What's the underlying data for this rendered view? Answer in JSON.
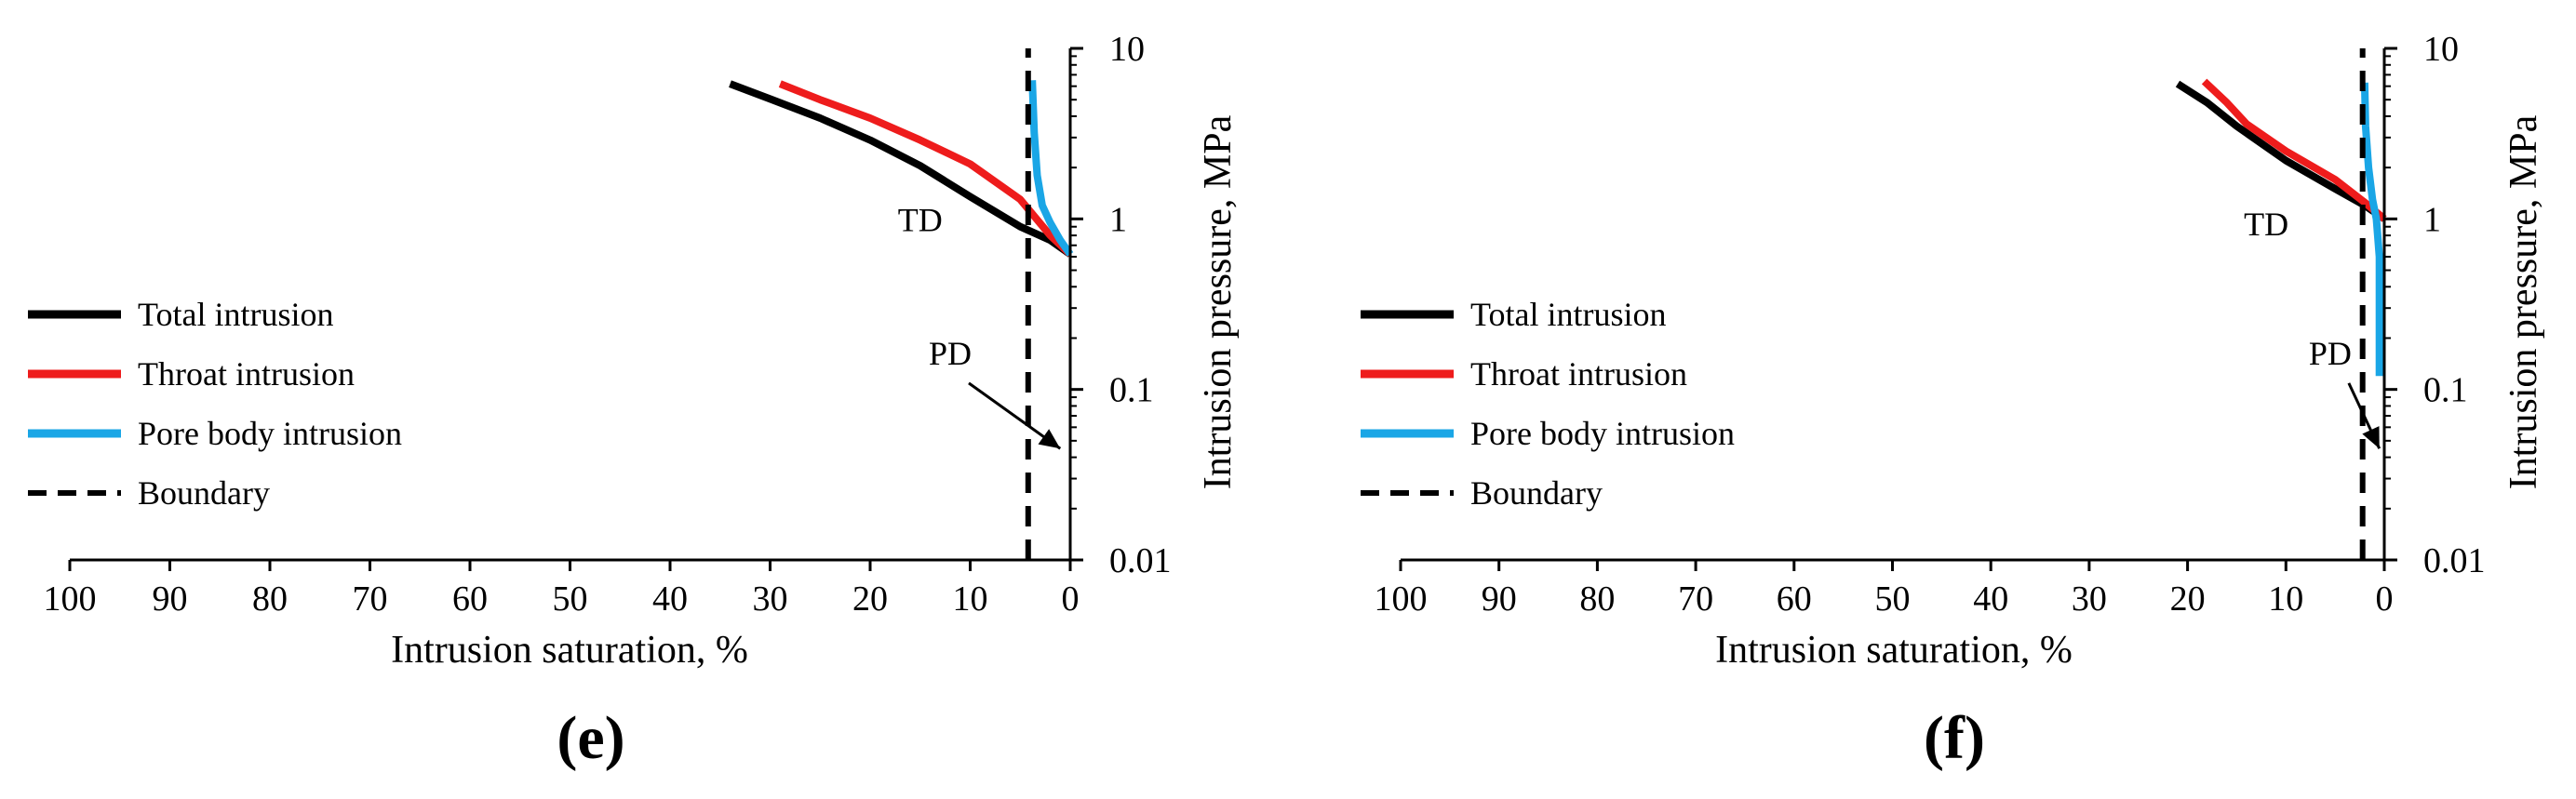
{
  "chart_data": [
    {
      "type": "line",
      "panel_label": "(e)",
      "xlabel": "Intrusion saturation, %",
      "ylabel": "Intrusion pressure, MPa",
      "x_reversed": true,
      "xlim": [
        0,
        100
      ],
      "x_ticks": [
        "100",
        "90",
        "80",
        "70",
        "60",
        "50",
        "40",
        "30",
        "20",
        "10",
        "0"
      ],
      "yscale": "log",
      "ylim": [
        0.01,
        10
      ],
      "y_ticks": [
        "10",
        "1",
        "0.1",
        "0.01"
      ],
      "legend_position": "left-middle",
      "series": [
        {
          "name": "Total intrusion",
          "color": "#000000",
          "style": "solid",
          "x": [
            0,
            2,
            5,
            10,
            15,
            20,
            25,
            30,
            34
          ],
          "y": [
            0.62,
            0.75,
            0.9,
            1.35,
            2.05,
            2.9,
            3.9,
            5.05,
            6.2
          ]
        },
        {
          "name": "Throat intrusion",
          "color": "#ee1c1c",
          "style": "solid",
          "x": [
            0,
            2,
            5,
            10,
            15,
            20,
            25,
            29
          ],
          "y": [
            0.62,
            0.8,
            1.3,
            2.1,
            2.9,
            3.9,
            5.0,
            6.2
          ]
        },
        {
          "name": "Pore body intrusion",
          "color": "#1aa6e6",
          "style": "solid",
          "x": [
            0,
            1,
            2,
            2.8,
            3.3,
            3.6,
            3.8
          ],
          "y": [
            0.62,
            0.75,
            0.95,
            1.2,
            1.8,
            3.2,
            6.5
          ]
        },
        {
          "name": "Boundary",
          "color": "#000000",
          "style": "dashed",
          "x": [
            4.2,
            4.2
          ],
          "y": [
            0.01,
            10
          ]
        }
      ],
      "annotations": [
        {
          "text": "TD",
          "x": 15,
          "y": 0.85
        },
        {
          "text": "PD",
          "x": 12,
          "y": 0.14,
          "arrow_to": {
            "x": 1.0,
            "y": 0.045
          }
        }
      ]
    },
    {
      "type": "line",
      "panel_label": "(f)",
      "xlabel": "Intrusion saturation, %",
      "ylabel": "Intrusion pressure, MPa",
      "x_reversed": true,
      "xlim": [
        0,
        100
      ],
      "x_ticks": [
        "100",
        "90",
        "80",
        "70",
        "60",
        "50",
        "40",
        "30",
        "20",
        "10",
        "0"
      ],
      "yscale": "log",
      "ylim": [
        0.01,
        10
      ],
      "y_ticks": [
        "10",
        "1",
        "0.1",
        "0.01"
      ],
      "legend_position": "left-middle",
      "series": [
        {
          "name": "Total intrusion",
          "color": "#000000",
          "style": "solid",
          "x": [
            0,
            2,
            5,
            10,
            15,
            18,
            21
          ],
          "y": [
            1.0,
            1.2,
            1.5,
            2.2,
            3.5,
            4.8,
            6.2
          ]
        },
        {
          "name": "Throat intrusion",
          "color": "#ee1c1c",
          "style": "solid",
          "x": [
            0,
            2,
            5,
            10,
            14,
            16,
            18.3
          ],
          "y": [
            1.0,
            1.25,
            1.7,
            2.5,
            3.6,
            4.8,
            6.4
          ]
        },
        {
          "name": "Pore body intrusion",
          "color": "#1aa6e6",
          "style": "solid",
          "x": [
            0.5,
            0.5,
            0.8,
            1.2,
            1.6,
            1.9,
            2.0
          ],
          "y": [
            0.12,
            0.6,
            1.0,
            1.3,
            2.0,
            3.5,
            6.3
          ]
        },
        {
          "name": "Boundary",
          "color": "#000000",
          "style": "dashed",
          "x": [
            2.2,
            2.2
          ],
          "y": [
            0.01,
            10
          ]
        }
      ],
      "annotations": [
        {
          "text": "TD",
          "x": 12,
          "y": 0.8
        },
        {
          "text": "PD",
          "x": 5.5,
          "y": 0.14,
          "arrow_to": {
            "x": 0.5,
            "y": 0.045
          }
        }
      ]
    }
  ]
}
